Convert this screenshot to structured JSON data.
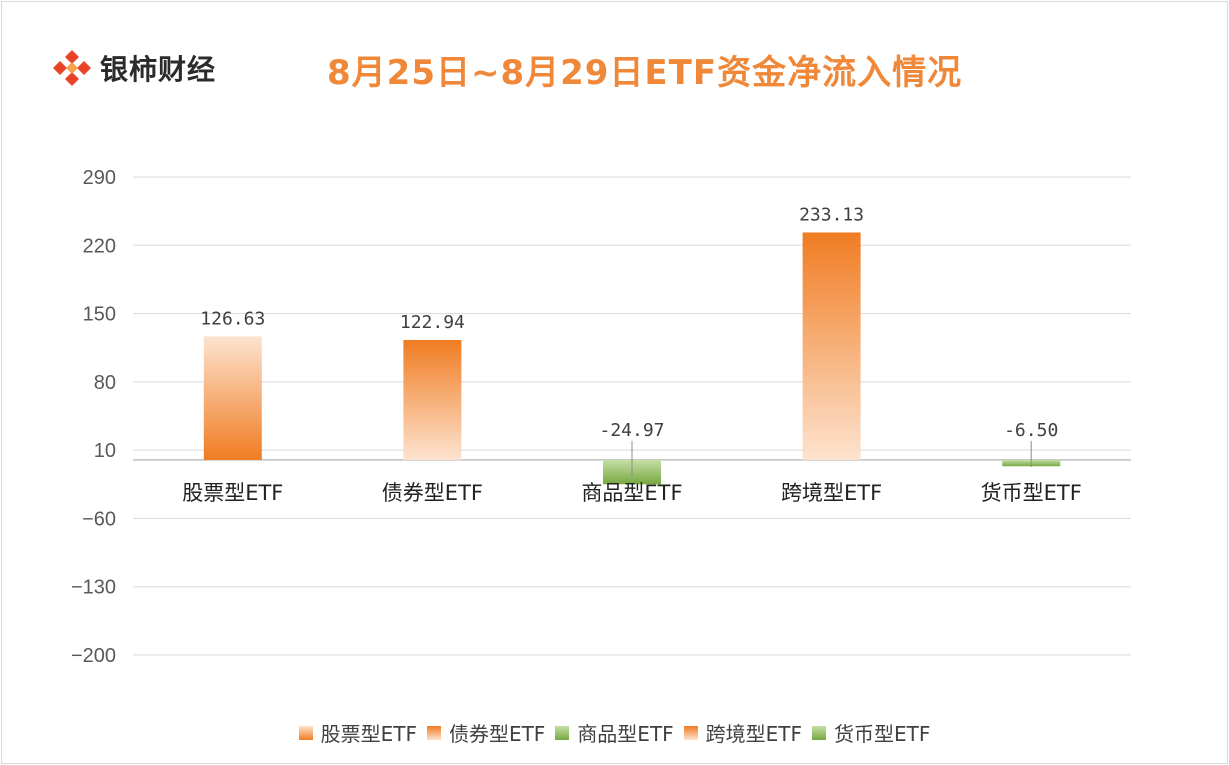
{
  "brand": {
    "logo_text": "银柿财经"
  },
  "colors": {
    "orange_dark": "#f07c22",
    "orange_light": "#fde3cf",
    "green_dark": "#76a83f",
    "green_light": "#c5dfa6",
    "grid": "#d9d9d9"
  },
  "chart_data": {
    "type": "bar",
    "title": "8月25日~8月29日ETF资金净流入情况",
    "categories": [
      "股票型ETF",
      "债券型ETF",
      "商品型ETF",
      "跨境型ETF",
      "货币型ETF"
    ],
    "values": [
      126.63,
      122.94,
      -24.97,
      233.13,
      -6.5
    ],
    "value_labels": [
      "126.63",
      "122.94",
      "-24.97",
      "233.13",
      "-6.50"
    ],
    "bar_colors": [
      "orange",
      "orange",
      "green",
      "orange",
      "green"
    ],
    "gradient_direction": [
      "light-top",
      "light-bottom",
      "light-top",
      "light-bottom",
      "light-top"
    ],
    "ylim": [
      -200,
      290
    ],
    "yticks": [
      290,
      220,
      150,
      80,
      10,
      -60,
      -130,
      -200
    ],
    "ytick_labels": [
      "290",
      "220",
      "150",
      "80",
      "10",
      "−60",
      "−130",
      "−200"
    ],
    "xlabel": "",
    "ylabel": "",
    "grid": true,
    "legend_position": "bottom",
    "legend": [
      "股票型ETF",
      "债券型ETF",
      "商品型ETF",
      "跨境型ETF",
      "货币型ETF"
    ]
  }
}
